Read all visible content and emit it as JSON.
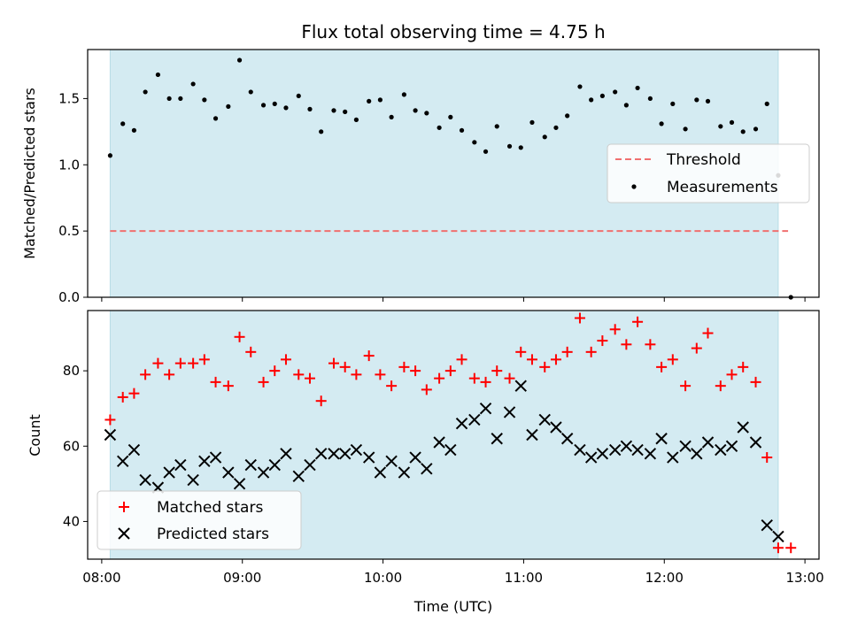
{
  "chart_data": [
    {
      "type": "scatter",
      "panel": "top",
      "title": "Flux total observing time = 4.75 h",
      "ylabel": "Matched/Predicted stars",
      "xlabel": "",
      "xlim": [
        7.9,
        13.1
      ],
      "ylim": [
        0,
        1.87
      ],
      "yticks": [
        0.0,
        0.5,
        1.0,
        1.5
      ],
      "ytick_labels": [
        "0.0",
        "0.5",
        "1.0",
        "1.5"
      ],
      "xticks": [
        8,
        9,
        10,
        11,
        12,
        13
      ],
      "shaded_interval": [
        8.06,
        12.81
      ],
      "shade_color": "#d4ebf2",
      "grid": false,
      "legend": {
        "placement": "center-right",
        "entries": [
          "Threshold",
          "Measurements"
        ]
      },
      "series": [
        {
          "name": "Threshold",
          "kind": "dashed-line",
          "color": "#f07070",
          "x": [
            8.06,
            12.88
          ],
          "y": [
            0.5,
            0.5
          ]
        },
        {
          "name": "Measurements",
          "kind": "points",
          "color": "#000000",
          "x": [
            8.06,
            8.15,
            8.23,
            8.31,
            8.4,
            8.48,
            8.56,
            8.65,
            8.73,
            8.81,
            8.9,
            8.98,
            9.06,
            9.15,
            9.23,
            9.31,
            9.4,
            9.48,
            9.56,
            9.65,
            9.73,
            9.81,
            9.9,
            9.98,
            10.06,
            10.15,
            10.23,
            10.31,
            10.4,
            10.48,
            10.56,
            10.65,
            10.73,
            10.81,
            10.9,
            10.98,
            11.06,
            11.15,
            11.23,
            11.31,
            11.4,
            11.48,
            11.56,
            11.65,
            11.73,
            11.81,
            11.9,
            11.98,
            12.06,
            12.15,
            12.23,
            12.31,
            12.4,
            12.48,
            12.56,
            12.65,
            12.73,
            12.81,
            12.9
          ],
          "y": [
            1.07,
            1.31,
            1.26,
            1.55,
            1.68,
            1.5,
            1.5,
            1.61,
            1.49,
            1.35,
            1.44,
            1.79,
            1.55,
            1.45,
            1.46,
            1.43,
            1.52,
            1.42,
            1.25,
            1.41,
            1.4,
            1.34,
            1.48,
            1.49,
            1.36,
            1.53,
            1.41,
            1.39,
            1.28,
            1.36,
            1.26,
            1.17,
            1.1,
            1.29,
            1.14,
            1.13,
            1.32,
            1.21,
            1.28,
            1.37,
            1.59,
            1.49,
            1.52,
            1.55,
            1.45,
            1.58,
            1.5,
            1.31,
            1.46,
            1.27,
            1.49,
            1.48,
            1.29,
            1.32,
            1.25,
            1.27,
            1.46,
            0.92,
            0.0
          ]
        }
      ]
    },
    {
      "type": "scatter",
      "panel": "bottom",
      "title": "",
      "xlabel": "Time (UTC)",
      "ylabel": "Count",
      "xlim": [
        7.9,
        13.1
      ],
      "ylim": [
        30,
        96
      ],
      "yticks": [
        40,
        60,
        80
      ],
      "xticks": [
        8,
        9,
        10,
        11,
        12,
        13
      ],
      "xtick_labels": [
        "08:00",
        "09:00",
        "10:00",
        "11:00",
        "12:00",
        "13:00"
      ],
      "shaded_interval": [
        8.06,
        12.81
      ],
      "shade_color": "#d4ebf2",
      "grid": false,
      "legend": {
        "placement": "lower-left",
        "entries": [
          "Matched stars",
          "Predicted stars"
        ]
      },
      "series": [
        {
          "name": "Matched stars",
          "marker": "plus",
          "color": "#ff0000",
          "x": [
            8.06,
            8.15,
            8.23,
            8.31,
            8.4,
            8.48,
            8.56,
            8.65,
            8.73,
            8.81,
            8.9,
            8.98,
            9.06,
            9.15,
            9.23,
            9.31,
            9.4,
            9.48,
            9.56,
            9.65,
            9.73,
            9.81,
            9.9,
            9.98,
            10.06,
            10.15,
            10.23,
            10.31,
            10.4,
            10.48,
            10.56,
            10.65,
            10.73,
            10.81,
            10.9,
            10.98,
            11.06,
            11.15,
            11.23,
            11.31,
            11.4,
            11.48,
            11.56,
            11.65,
            11.73,
            11.81,
            11.9,
            11.98,
            12.06,
            12.15,
            12.23,
            12.31,
            12.4,
            12.48,
            12.56,
            12.65,
            12.73,
            12.81,
            12.9
          ],
          "y": [
            67,
            73,
            74,
            79,
            82,
            79,
            82,
            82,
            83,
            77,
            76,
            89,
            85,
            77,
            80,
            83,
            79,
            78,
            72,
            82,
            81,
            79,
            84,
            79,
            76,
            81,
            80,
            75,
            78,
            80,
            83,
            78,
            77,
            80,
            78,
            85,
            83,
            81,
            83,
            85,
            94,
            85,
            88,
            91,
            87,
            93,
            87,
            81,
            83,
            76,
            86,
            90,
            76,
            79,
            81,
            77,
            57,
            33,
            33
          ]
        },
        {
          "name": "Predicted stars",
          "marker": "x",
          "color": "#000000",
          "x": [
            8.06,
            8.15,
            8.23,
            8.31,
            8.4,
            8.48,
            8.56,
            8.65,
            8.73,
            8.81,
            8.9,
            8.98,
            9.06,
            9.15,
            9.23,
            9.31,
            9.4,
            9.48,
            9.56,
            9.65,
            9.73,
            9.81,
            9.9,
            9.98,
            10.06,
            10.15,
            10.23,
            10.31,
            10.4,
            10.48,
            10.56,
            10.65,
            10.73,
            10.81,
            10.9,
            10.98,
            11.06,
            11.15,
            11.23,
            11.31,
            11.4,
            11.48,
            11.56,
            11.65,
            11.73,
            11.81,
            11.9,
            11.98,
            12.06,
            12.15,
            12.23,
            12.31,
            12.4,
            12.48,
            12.56,
            12.65,
            12.73,
            12.81
          ],
          "y": [
            63,
            56,
            59,
            51,
            49,
            53,
            55,
            51,
            56,
            57,
            53,
            50,
            55,
            53,
            55,
            58,
            52,
            55,
            58,
            58,
            58,
            59,
            57,
            53,
            56,
            53,
            57,
            54,
            61,
            59,
            66,
            67,
            70,
            62,
            69,
            76,
            63,
            67,
            65,
            62,
            59,
            57,
            58,
            59,
            60,
            59,
            58,
            62,
            57,
            60,
            58,
            61,
            59,
            60,
            65,
            61,
            39,
            36
          ]
        }
      ]
    }
  ]
}
